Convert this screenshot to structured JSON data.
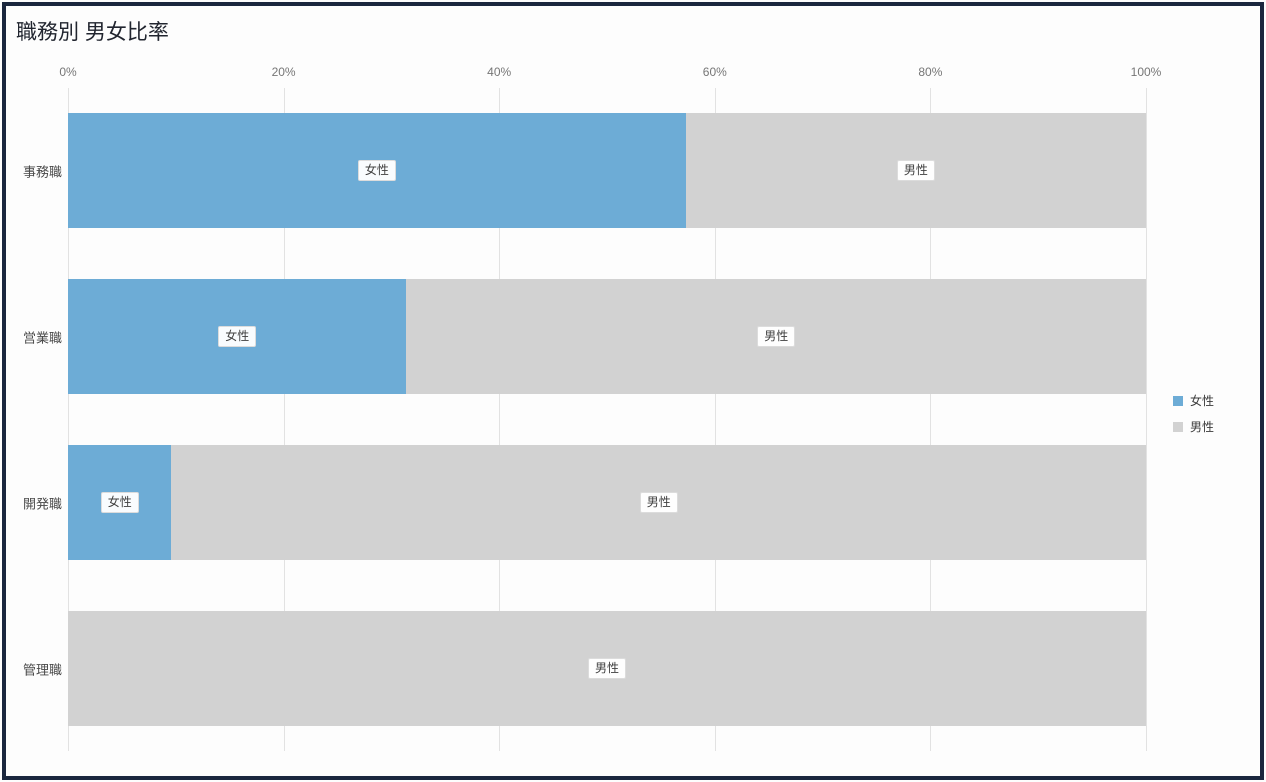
{
  "title": "職務別 男女比率",
  "chart_data": {
    "type": "bar",
    "variant": "100%-stacked-horizontal",
    "title": "職務別 男女比率",
    "categories": [
      "事務職",
      "営業職",
      "開発職",
      "管理職"
    ],
    "series": [
      {
        "name": "女性",
        "color": "#6DACD6",
        "values": [
          57.3,
          31.4,
          9.6,
          0
        ]
      },
      {
        "name": "男性",
        "color": "#D2D2D2",
        "values": [
          42.7,
          68.6,
          90.4,
          100
        ]
      }
    ],
    "x_ticks": [
      {
        "value": 0,
        "label": "0%"
      },
      {
        "value": 20,
        "label": "20%"
      },
      {
        "value": 40,
        "label": "40%"
      },
      {
        "value": 60,
        "label": "60%"
      },
      {
        "value": 80,
        "label": "80%"
      },
      {
        "value": 100,
        "label": "100%"
      }
    ],
    "xlim": [
      0,
      100
    ],
    "grid": true,
    "legend_position": "right",
    "segment_label_style": "series-name-in-white-box"
  },
  "colors": {
    "frame_border": "#1B273E",
    "female": "#6DACD6",
    "male": "#D2D2D2",
    "gridline": "#E2E2E2",
    "tick_text": "#767676",
    "title_text": "#21252F"
  }
}
